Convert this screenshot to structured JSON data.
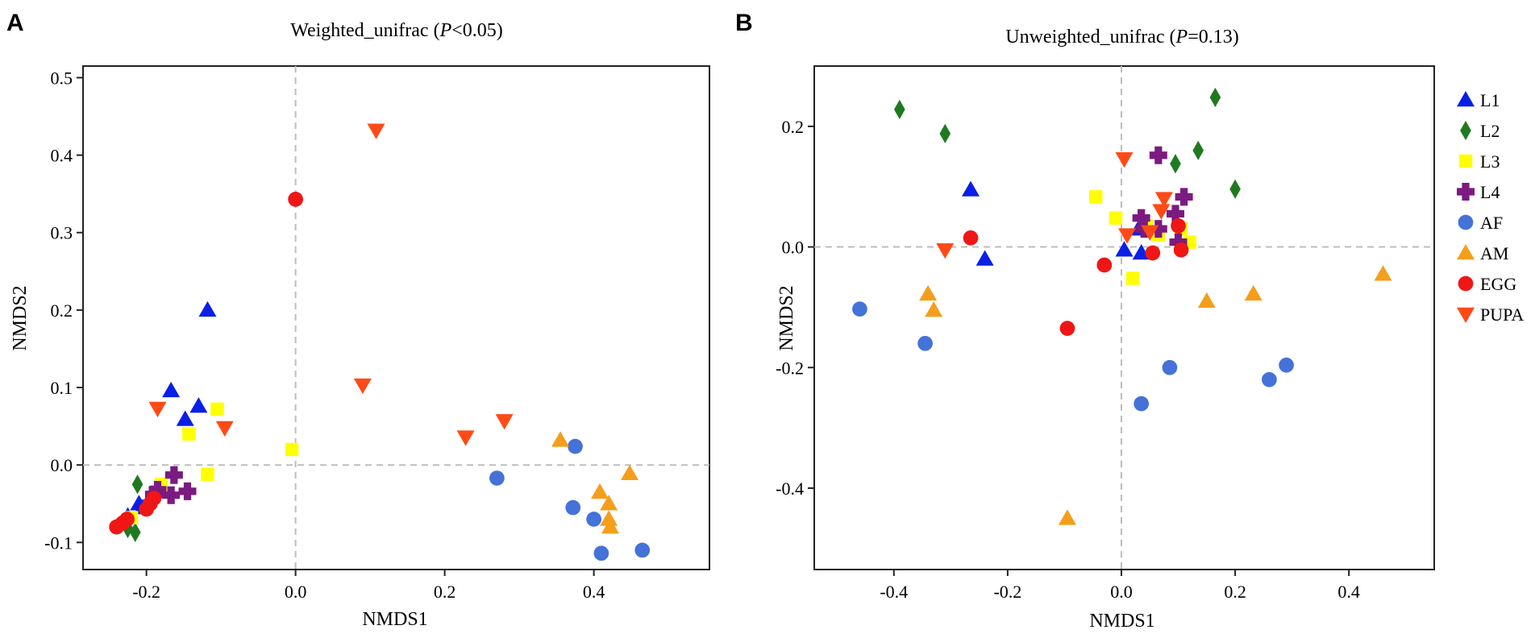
{
  "colors": {
    "L1": "#0a1fe6",
    "L2": "#1f7a1f",
    "L3": "#ffff00",
    "L4": "#7b1a80",
    "AF": "#4472d9",
    "AM": "#f59e1b",
    "EGG": "#f01616",
    "PUPA": "#ff4a17"
  },
  "chart_data": [
    {
      "type": "scatter",
      "panel": "A",
      "title_main": "Weighted_unifrac (",
      "title_p": "P",
      "title_tail": "<0.05)",
      "xlabel": "NMDS1",
      "ylabel": "NMDS2",
      "xlim": [
        -0.285,
        0.555
      ],
      "ylim": [
        -0.135,
        0.515
      ],
      "xticks": [
        -0.2,
        0.0,
        0.2,
        0.4
      ],
      "yticks": [
        -0.1,
        0.0,
        0.1,
        0.2,
        0.3,
        0.4,
        0.5
      ],
      "xtick_labels": [
        "-0.2",
        "0.0",
        "0.2",
        "0.4"
      ],
      "ytick_labels": [
        "-0.1",
        "0.0",
        "0.1",
        "0.2",
        "0.3",
        "0.4",
        "0.5"
      ],
      "reference_lines": {
        "x": 0,
        "y": 0
      },
      "series": [
        {
          "name": "L1",
          "marker": "triangle-up",
          "x": [
            -0.118,
            -0.167,
            -0.148,
            -0.13,
            -0.225,
            -0.205,
            -0.21
          ],
          "y": [
            0.2,
            0.096,
            0.059,
            0.076,
            -0.066,
            -0.055,
            -0.05
          ]
        },
        {
          "name": "L2",
          "marker": "diamond",
          "x": [
            -0.212,
            -0.225,
            -0.215
          ],
          "y": [
            -0.025,
            -0.082,
            -0.087
          ]
        },
        {
          "name": "L3",
          "marker": "square",
          "x": [
            -0.105,
            -0.143,
            -0.118,
            -0.005,
            -0.18,
            -0.22
          ],
          "y": [
            0.072,
            0.04,
            -0.012,
            0.02,
            -0.025,
            -0.068
          ]
        },
        {
          "name": "L4",
          "marker": "plus",
          "x": [
            -0.163,
            -0.145,
            -0.167,
            -0.185,
            -0.19
          ],
          "y": [
            -0.013,
            -0.034,
            -0.039,
            -0.032,
            -0.038
          ]
        },
        {
          "name": "AF",
          "marker": "circle",
          "x": [
            0.375,
            0.27,
            0.372,
            0.4,
            0.41,
            0.465
          ],
          "y": [
            0.024,
            -0.017,
            -0.055,
            -0.07,
            -0.114,
            -0.11
          ]
        },
        {
          "name": "AM",
          "marker": "triangle-up",
          "x": [
            0.355,
            0.408,
            0.448,
            0.42,
            0.42,
            0.422
          ],
          "y": [
            0.032,
            -0.035,
            -0.011,
            -0.05,
            -0.07,
            -0.08
          ]
        },
        {
          "name": "EGG",
          "marker": "circle",
          "x": [
            0.0,
            -0.24,
            -0.232,
            -0.226,
            -0.2,
            -0.195,
            -0.19
          ],
          "y": [
            0.343,
            -0.08,
            -0.075,
            -0.07,
            -0.057,
            -0.05,
            -0.043
          ]
        },
        {
          "name": "PUPA",
          "marker": "triangle-down",
          "x": [
            0.108,
            0.09,
            0.228,
            0.28,
            -0.185,
            -0.095
          ],
          "y": [
            0.432,
            0.103,
            0.036,
            0.057,
            0.073,
            0.048
          ]
        }
      ]
    },
    {
      "type": "scatter",
      "panel": "B",
      "title_main": "Unweighted_unifrac (",
      "title_p": "P",
      "title_tail": "=0.13)",
      "xlabel": "NMDS1",
      "ylabel": "NMDS2",
      "xlim": [
        -0.54,
        0.55
      ],
      "ylim": [
        -0.535,
        0.3
      ],
      "xticks": [
        -0.4,
        -0.2,
        0.0,
        0.2,
        0.4
      ],
      "yticks": [
        -0.4,
        -0.2,
        0.0,
        0.2
      ],
      "xtick_labels": [
        "-0.4",
        "-0.2",
        "0.0",
        "0.2",
        "0.4"
      ],
      "ytick_labels": [
        "-0.4",
        "-0.2",
        "0.0",
        "0.2"
      ],
      "reference_lines": {
        "x": 0,
        "y": 0
      },
      "series": [
        {
          "name": "L1",
          "marker": "triangle-up",
          "x": [
            -0.265,
            -0.24,
            0.005,
            0.035,
            0.03
          ],
          "y": [
            0.095,
            -0.02,
            -0.005,
            -0.01,
            0.03
          ]
        },
        {
          "name": "L2",
          "marker": "diamond",
          "x": [
            -0.39,
            -0.31,
            0.165,
            0.135,
            0.095,
            0.2
          ],
          "y": [
            0.228,
            0.188,
            0.248,
            0.16,
            0.138,
            0.096
          ]
        },
        {
          "name": "L3",
          "marker": "square",
          "x": [
            -0.045,
            -0.01,
            0.02,
            0.105,
            0.12,
            0.065,
            0.045
          ],
          "y": [
            0.083,
            0.048,
            -0.052,
            0.03,
            0.008,
            0.02,
            0.035
          ]
        },
        {
          "name": "L4",
          "marker": "plus",
          "x": [
            0.035,
            0.065,
            0.11,
            0.04,
            0.065,
            0.095,
            0.1
          ],
          "y": [
            0.048,
            0.152,
            0.083,
            0.03,
            0.03,
            0.055,
            0.008
          ]
        },
        {
          "name": "AF",
          "marker": "circle",
          "x": [
            -0.46,
            -0.345,
            0.035,
            0.085,
            0.26,
            0.29
          ],
          "y": [
            -0.103,
            -0.16,
            -0.26,
            -0.2,
            -0.22,
            -0.196
          ]
        },
        {
          "name": "AM",
          "marker": "triangle-up",
          "x": [
            -0.34,
            -0.33,
            -0.095,
            0.15,
            0.232,
            0.46
          ],
          "y": [
            -0.078,
            -0.105,
            -0.45,
            -0.09,
            -0.078,
            -0.045
          ]
        },
        {
          "name": "EGG",
          "marker": "circle",
          "x": [
            -0.265,
            -0.095,
            -0.03,
            0.055,
            0.1,
            0.105
          ],
          "y": [
            0.015,
            -0.135,
            -0.03,
            -0.01,
            0.035,
            -0.005
          ]
        },
        {
          "name": "PUPA",
          "marker": "triangle-down",
          "x": [
            -0.31,
            0.005,
            0.01,
            0.075,
            0.07,
            0.05
          ],
          "y": [
            -0.005,
            0.146,
            0.02,
            0.08,
            0.06,
            0.025
          ]
        }
      ],
      "legend": {
        "position": "right",
        "entries": [
          {
            "label": "L1",
            "marker": "triangle-up"
          },
          {
            "label": "L2",
            "marker": "diamond"
          },
          {
            "label": "L3",
            "marker": "square"
          },
          {
            "label": "L4",
            "marker": "plus"
          },
          {
            "label": "AF",
            "marker": "circle"
          },
          {
            "label": "AM",
            "marker": "triangle-up"
          },
          {
            "label": "EGG",
            "marker": "circle"
          },
          {
            "label": "PUPA",
            "marker": "triangle-down"
          }
        ]
      }
    }
  ]
}
